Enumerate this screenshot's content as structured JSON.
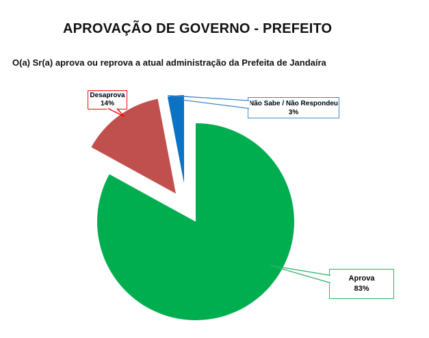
{
  "header": {
    "title": "APROVAÇÃO DE GOVERNO - PREFEITO",
    "subtitle": "O(a) Sr(a) aprova ou reprova a atual administração da Prefeita de Jandaíra"
  },
  "chart_data": {
    "type": "pie",
    "title": "APROVAÇÃO DE GOVERNO - PREFEITO",
    "question": "O(a) Sr(a) aprova ou reprova a atual administração da Prefeita de Jandaíra",
    "unit": "%",
    "start_angle_deg": 0,
    "direction": "clockwise",
    "labels_style": "exploded slices with callout boxes",
    "legend_position": "none",
    "slices": [
      {
        "label": "Aprova",
        "value": 83,
        "pct": "83%",
        "color": "#00AE50",
        "callout_color": "#2EB065"
      },
      {
        "label": "Desaprova",
        "value": 14,
        "pct": "14%",
        "color": "#C0504D",
        "callout_color": "#FF0000"
      },
      {
        "label": "Não Sabe / Não Respondeu",
        "value": 3,
        "pct": "3%",
        "color": "#0B72C4",
        "callout_color": "#3E86C6"
      }
    ]
  }
}
